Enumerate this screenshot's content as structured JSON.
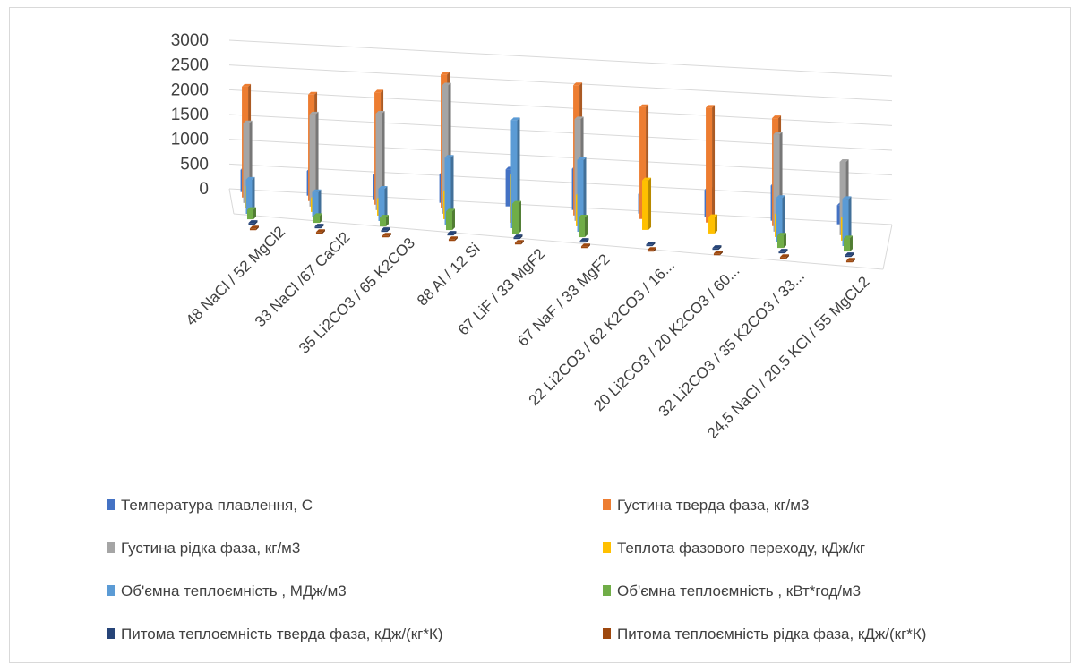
{
  "chart_data": {
    "type": "bar",
    "subtype": "3d-clustered-column",
    "title": "",
    "xlabel": "",
    "ylabel": "",
    "ylim": [
      0,
      3000
    ],
    "yticks": [
      "3000",
      "2500",
      "2000",
      "1500",
      "1000",
      "500",
      "0"
    ],
    "grid": true,
    "legend_position": "bottom",
    "categories": [
      "48 NaCl / 52 MgCl2",
      "33 NaCl /67 CaCl2",
      "35 Li2CO3 / 65 K2CO3",
      "88 Al / 12 Si",
      "67 LiF / 33 MgF2",
      "67 NaF / 33 MgF2",
      "22 Li2CO3 / 62 K2CO3 / 16...",
      "20 Li2CO3 / 20 K2CO3 / 60...",
      "32 Li2CO3 / 35 K2CO3 / 33...",
      "24,5 NaCl / 20,5 KCl / 55 MgCL2"
    ],
    "series": [
      {
        "name": "Температура плавлення, С",
        "color": "#4472c4",
        "values": [
          450,
          500,
          490,
          577,
          746,
          832,
          397,
          550,
          710,
          385
        ]
      },
      {
        "name": "Густина тверда фаза, кг/м3",
        "color": "#ed7d31",
        "values": [
          2240,
          2150,
          2265,
          2700,
          0,
          2630,
          2260,
          2320,
          2180,
          0
        ]
      },
      {
        "name": "Густина рідка фаза, кг/м3",
        "color": "#a5a5a5",
        "values": [
          1610,
          1860,
          1950,
          2590,
          0,
          2050,
          0,
          0,
          1960,
          1480
        ]
      },
      {
        "name": "Теплота фазового переходу, кДж/кг",
        "color": "#ffc000",
        "values": [
          430,
          280,
          340,
          560,
          950,
          630,
          1000,
          330,
          460,
          460
        ]
      },
      {
        "name": "Об'ємна теплоємність , МДж/м3",
        "color": "#5b9bd5",
        "values": [
          690,
          510,
          650,
          1350,
          2180,
          1450,
          0,
          0,
          900,
          950
        ]
      },
      {
        "name": "Об'ємна теплоємність , кВт*год/м3",
        "color": "#70ad47",
        "values": [
          190,
          140,
          180,
          375,
          605,
          400,
          0,
          0,
          250,
          265
        ]
      },
      {
        "name": "Питома теплоємність тверда фаза, кДж/(кг*К)",
        "color": "#264478",
        "values": [
          1,
          1,
          1.5,
          1,
          1.4,
          1.4,
          1.6,
          1.3,
          1.6,
          1
        ]
      },
      {
        "name": "Питома теплоємність рідка фаза, кДж/(кг*К)",
        "color": "#9e480e",
        "values": [
          1,
          1,
          1.6,
          1,
          1.8,
          1.4,
          1.6,
          1.8,
          1.6,
          1
        ]
      }
    ]
  }
}
